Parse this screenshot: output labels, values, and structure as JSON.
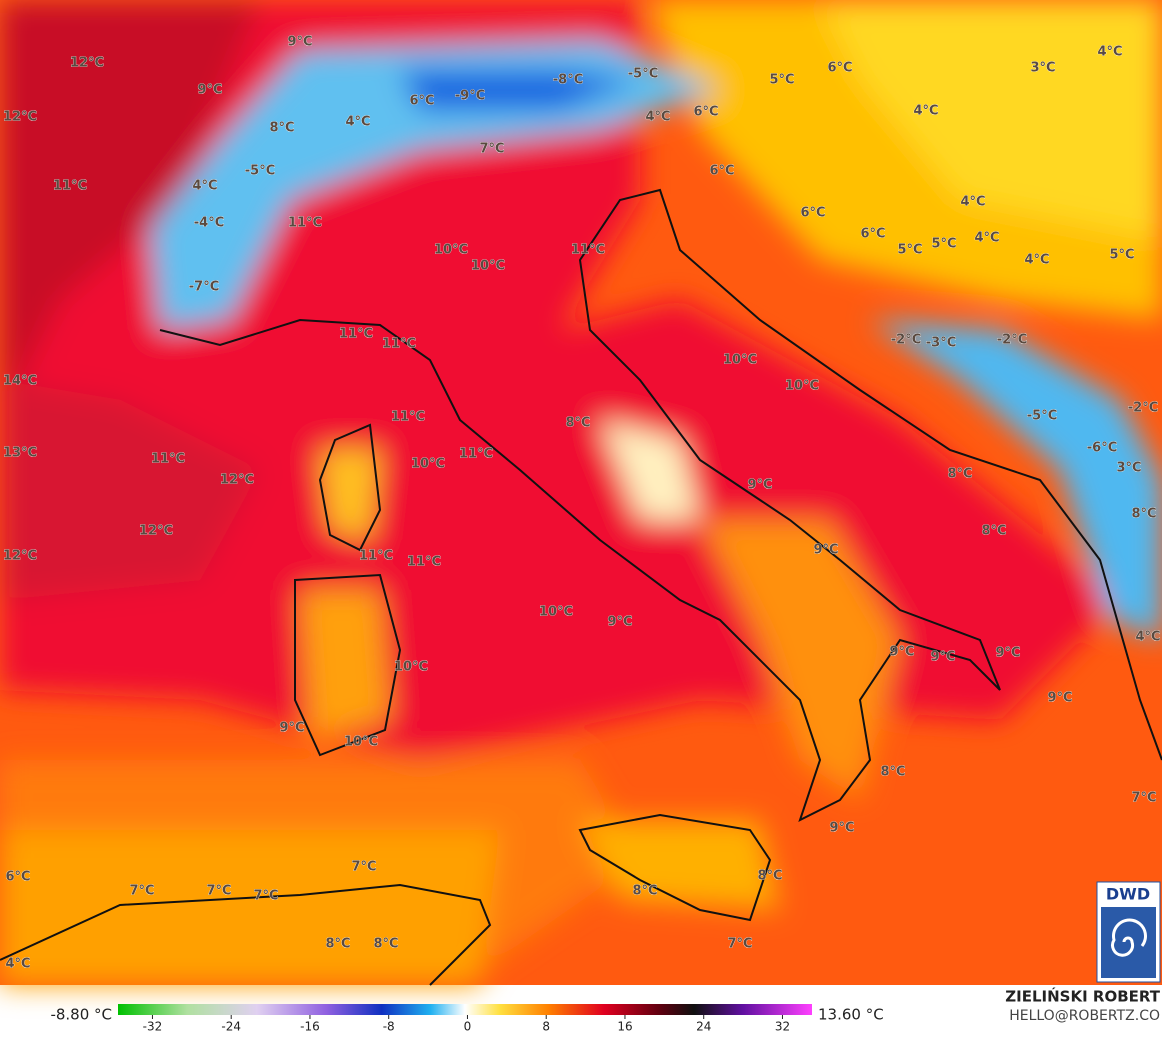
{
  "map": {
    "labels": [
      "9°C",
      "12°C",
      "9°C",
      "12°C",
      "8°C",
      "6°C",
      "-9°C",
      "-8°C",
      "-5°C",
      "5°C",
      "6°C",
      "4°C",
      "3°C",
      "4°C",
      "7°C",
      "4°C",
      "6°C",
      "4°C",
      "11°C",
      "4°C",
      "-5°C",
      "6°C",
      "4°C",
      "-4°C",
      "11°C",
      "6°C",
      "10°C",
      "11°C",
      "6°C",
      "5°C",
      "5°C",
      "4°C",
      "4°C",
      "5°C",
      "10°C",
      "-7°C",
      "11°C",
      "11°C",
      "-2°C",
      "-3°C",
      "-2°C",
      "10°C",
      "10°C",
      "14°C",
      "11°C",
      "8°C",
      "-5°C",
      "-2°C",
      "13°C",
      "11°C",
      "10°C",
      "11°C",
      "-6°C",
      "3°C",
      "12°C",
      "9°C",
      "8°C",
      "12°C",
      "8°C",
      "8°C",
      "12°C",
      "11°C",
      "11°C",
      "9°C",
      "10°C",
      "9°C",
      "4°C",
      "10°C",
      "9°C",
      "9°C",
      "9°C",
      "9°C",
      "9°C",
      "10°C",
      "8°C",
      "7°C",
      "9°C",
      "7°C",
      "6°C",
      "7°C",
      "7°C",
      "7°C",
      "8°C",
      "8°C",
      "8°C",
      "8°C",
      "7°C",
      "4°C"
    ]
  },
  "colorbar": {
    "min_label": "-8.80 °C",
    "max_label": "13.60 °C",
    "range": [
      -35.5,
      35
    ],
    "ticks": [
      -32,
      -24,
      -16,
      -8,
      0,
      8,
      16,
      24,
      32
    ]
  },
  "credits": {
    "author": "ZIELIŃSKI ROBERT",
    "contact": "HELLO@ROBERTZ.CO",
    "logo": "DWD"
  }
}
